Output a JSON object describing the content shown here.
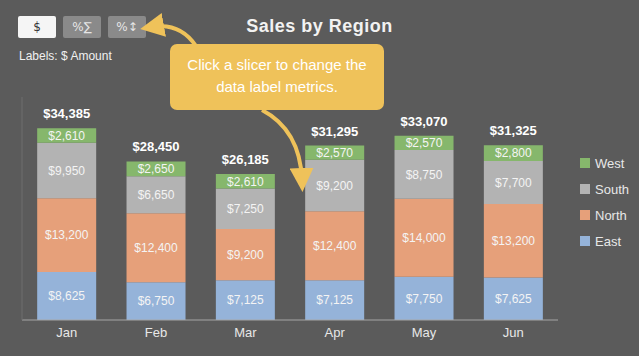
{
  "chart_data": {
    "type": "bar",
    "title": "Sales by Region",
    "categories": [
      "Jan",
      "Feb",
      "Mar",
      "Apr",
      "May",
      "Jun"
    ],
    "series": [
      {
        "name": "East",
        "color": "#95b3d9",
        "values": [
          8625,
          6750,
          7125,
          7125,
          7750,
          7625
        ],
        "value_labels": [
          "$8,625",
          "$6,750",
          "$7,125",
          "$7,125",
          "$7,750",
          "$7,625"
        ]
      },
      {
        "name": "North",
        "color": "#e6a07a",
        "values": [
          13200,
          12400,
          9200,
          12400,
          14000,
          13200
        ],
        "value_labels": [
          "$13,200",
          "$12,400",
          "$9,200",
          "$12,400",
          "$14,000",
          "$13,200"
        ]
      },
      {
        "name": "South",
        "color": "#b3b3b3",
        "values": [
          9950,
          6650,
          7250,
          9200,
          8750,
          7700
        ],
        "value_labels": [
          "$9,950",
          "$6,650",
          "$7,250",
          "$9,200",
          "$8,750",
          "$7,700"
        ]
      },
      {
        "name": "West",
        "color": "#86b76c",
        "values": [
          2610,
          2650,
          2610,
          2570,
          2570,
          2800
        ],
        "value_labels": [
          "$2,610",
          "$2,650",
          "$2,610",
          "$2,570",
          "$2,570",
          "$2,800"
        ]
      }
    ],
    "totals": [
      34385,
      28450,
      26185,
      31295,
      33070,
      31325
    ],
    "total_labels": [
      "$34,385",
      "$28,450",
      "$26,185",
      "$31,295",
      "$33,070",
      "$31,325"
    ],
    "ylim": [
      0,
      40000
    ],
    "stacked": true,
    "data_labels": true,
    "legend": "right",
    "tick_labels": "x",
    "grid": false,
    "annotations": {
      "slicers": [
        "$",
        "%∑",
        "%↕"
      ],
      "caption": "Labels: $ Amount",
      "callout": "Click a slicer to change the data label metrics."
    }
  }
}
